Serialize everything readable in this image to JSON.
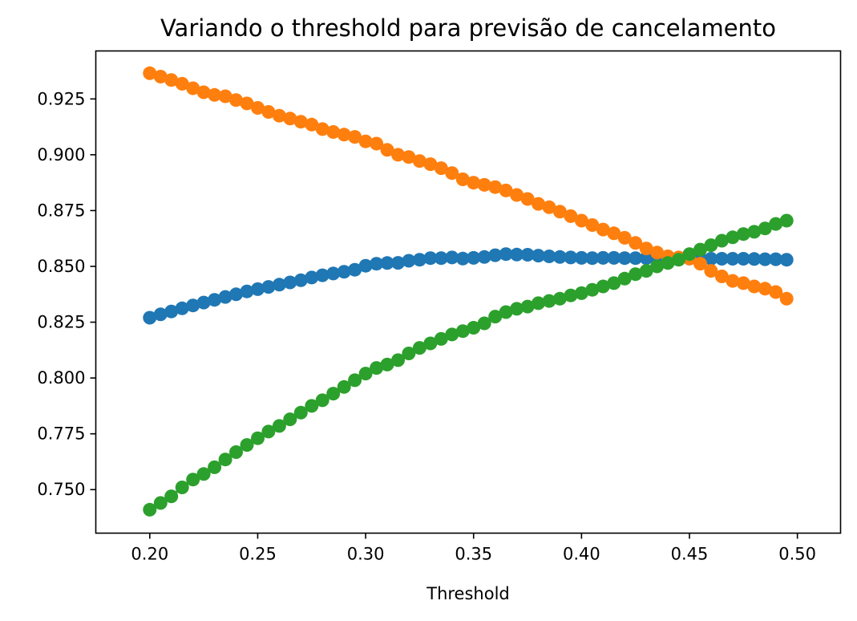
{
  "chart_data": {
    "type": "scatter",
    "title": "Variando o threshold para previsão de cancelamento",
    "xlabel": "Threshold",
    "ylabel": "",
    "xlim": [
      0.175,
      0.52
    ],
    "ylim": [
      0.7305,
      0.9465
    ],
    "xticks": [
      0.2,
      0.25,
      0.3,
      0.35,
      0.4,
      0.45,
      0.5
    ],
    "xtick_labels": [
      "0.20",
      "0.25",
      "0.30",
      "0.35",
      "0.40",
      "0.45",
      "0.50"
    ],
    "yticks": [
      0.75,
      0.775,
      0.8,
      0.825,
      0.85,
      0.875,
      0.9,
      0.925
    ],
    "ytick_labels": [
      "0.750",
      "0.775",
      "0.800",
      "0.825",
      "0.850",
      "0.875",
      "0.900",
      "0.925"
    ],
    "grid": false,
    "legend": null,
    "x": [
      0.2,
      0.205,
      0.21,
      0.215,
      0.22,
      0.225,
      0.23,
      0.235,
      0.24,
      0.245,
      0.25,
      0.255,
      0.26,
      0.265,
      0.27,
      0.275,
      0.28,
      0.285,
      0.29,
      0.295,
      0.3,
      0.305,
      0.31,
      0.315,
      0.32,
      0.325,
      0.33,
      0.335,
      0.34,
      0.345,
      0.35,
      0.355,
      0.36,
      0.365,
      0.37,
      0.375,
      0.38,
      0.385,
      0.39,
      0.395,
      0.4,
      0.405,
      0.41,
      0.415,
      0.42,
      0.425,
      0.43,
      0.435,
      0.44,
      0.445,
      0.45,
      0.455,
      0.46,
      0.465,
      0.47,
      0.475,
      0.48,
      0.485,
      0.49,
      0.495
    ],
    "series": [
      {
        "color": "#1f77b4",
        "values": [
          0.827,
          0.8285,
          0.8298,
          0.8312,
          0.8325,
          0.8338,
          0.835,
          0.8363,
          0.8375,
          0.8388,
          0.8398,
          0.8408,
          0.8418,
          0.8428,
          0.8438,
          0.845,
          0.846,
          0.8468,
          0.8476,
          0.8485,
          0.8503,
          0.8512,
          0.8515,
          0.8516,
          0.8525,
          0.853,
          0.8537,
          0.8537,
          0.854,
          0.8535,
          0.8538,
          0.8542,
          0.855,
          0.8555,
          0.8553,
          0.8552,
          0.8548,
          0.8545,
          0.8542,
          0.854,
          0.8538,
          0.8537,
          0.8538,
          0.8538,
          0.8537,
          0.8537,
          0.8537,
          0.8537,
          0.8537,
          0.8536,
          0.8535,
          0.8535,
          0.8534,
          0.8534,
          0.8534,
          0.8534,
          0.8533,
          0.8532,
          0.8532,
          0.853
        ]
      },
      {
        "color": "#ff7f0e",
        "values": [
          0.9365,
          0.935,
          0.9335,
          0.9318,
          0.9298,
          0.928,
          0.9268,
          0.9262,
          0.9245,
          0.923,
          0.921,
          0.9192,
          0.9175,
          0.9162,
          0.9148,
          0.9135,
          0.9115,
          0.9102,
          0.909,
          0.908,
          0.906,
          0.905,
          0.9022,
          0.9,
          0.899,
          0.8972,
          0.8958,
          0.894,
          0.8918,
          0.889,
          0.8875,
          0.8865,
          0.8855,
          0.884,
          0.882,
          0.8802,
          0.878,
          0.8765,
          0.8745,
          0.8725,
          0.8705,
          0.8685,
          0.8665,
          0.8648,
          0.8628,
          0.8605,
          0.858,
          0.8562,
          0.8545,
          0.854,
          0.8535,
          0.8512,
          0.848,
          0.8455,
          0.8435,
          0.8425,
          0.841,
          0.84,
          0.8385,
          0.8355
        ]
      },
      {
        "color": "#2ca02c",
        "values": [
          0.741,
          0.744,
          0.747,
          0.751,
          0.7545,
          0.757,
          0.76,
          0.7635,
          0.7668,
          0.77,
          0.773,
          0.776,
          0.7785,
          0.7815,
          0.7845,
          0.7875,
          0.79,
          0.793,
          0.796,
          0.799,
          0.802,
          0.8045,
          0.806,
          0.808,
          0.811,
          0.8135,
          0.8155,
          0.8175,
          0.8195,
          0.821,
          0.8225,
          0.8245,
          0.8275,
          0.8295,
          0.831,
          0.832,
          0.8335,
          0.8345,
          0.8355,
          0.837,
          0.838,
          0.8395,
          0.841,
          0.8425,
          0.8445,
          0.8465,
          0.848,
          0.85,
          0.8515,
          0.853,
          0.8555,
          0.8575,
          0.8595,
          0.8615,
          0.863,
          0.8645,
          0.8655,
          0.867,
          0.869,
          0.8705
        ]
      }
    ]
  }
}
